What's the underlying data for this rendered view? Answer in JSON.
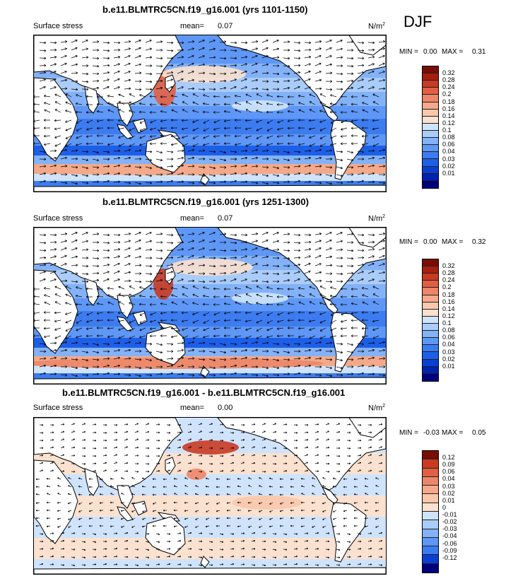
{
  "season": "DJF",
  "colors": {
    "mean_scale": [
      "#00007a",
      "#0022b0",
      "#0a3fd4",
      "#1e5fe8",
      "#3d7cf0",
      "#5e97f5",
      "#83b2f8",
      "#a9ccfa",
      "#cfe4fc",
      "#fbe1cf",
      "#f8c7ac",
      "#f3a98a",
      "#ec8668",
      "#e25e43",
      "#c93a22",
      "#a61f10",
      "#7a0c06"
    ],
    "diff_scale": [
      "#00007a",
      "#0a3fd4",
      "#3d7cf0",
      "#5e97f5",
      "#83b2f8",
      "#a9ccfa",
      "#cfe4fc",
      "#fbe1cf",
      "#f8c7ac",
      "#f3a98a",
      "#ec8668",
      "#e25e43",
      "#c93a22",
      "#7a0c06"
    ],
    "land": "#ffffff",
    "coast": "#000000"
  },
  "panels": [
    {
      "title": "b.e11.BLMTRC5CN.f19_g16.001 (yrs 1101-1150)",
      "left_label": "Surface stress",
      "mean_label": "mean=",
      "mean_value": "0.07",
      "units": "N/m",
      "units_sup": "2",
      "min_label": "MIN =",
      "min_value": "0.00",
      "max_label": "MAX =",
      "max_value": "0.31",
      "colorbar_labels": [
        "0.32",
        "0.28",
        "0.24",
        "0.2",
        "0.18",
        "0.16",
        "0.14",
        "0.12",
        "0.1",
        "0.08",
        "0.06",
        "0.04",
        "0.03",
        "0.02",
        "0.01"
      ]
    },
    {
      "title": "b.e11.BLMTRC5CN.f19_g16.001 (yrs 1251-1300)",
      "left_label": "Surface stress",
      "mean_label": "mean=",
      "mean_value": "0.07",
      "units": "N/m",
      "units_sup": "2",
      "min_label": "MIN =",
      "min_value": "0.00",
      "max_label": "MAX =",
      "max_value": "0.32",
      "colorbar_labels": [
        "0.32",
        "0.28",
        "0.24",
        "0.2",
        "0.18",
        "0.16",
        "0.14",
        "0.12",
        "0.1",
        "0.08",
        "0.06",
        "0.04",
        "0.03",
        "0.02",
        "0.01"
      ]
    },
    {
      "title": "b.e11.BLMTRC5CN.f19_g16.001 - b.e11.BLMTRC5CN.f19_g16.001",
      "left_label": "Surface stress",
      "mean_label": "mean=",
      "mean_value": "0.00",
      "units": "N/m",
      "units_sup": "2",
      "min_label": "MIN =",
      "min_value": "-0.03",
      "max_label": "MAX =",
      "max_value": "0.05",
      "colorbar_labels": [
        "0.12",
        "0.09",
        "0.06",
        "0.04",
        "0.03",
        "0.02",
        "0.01",
        "0",
        "-0.01",
        "-0.02",
        "-0.03",
        "-0.04",
        "-0.06",
        "-0.09",
        "-0.12"
      ]
    }
  ]
}
